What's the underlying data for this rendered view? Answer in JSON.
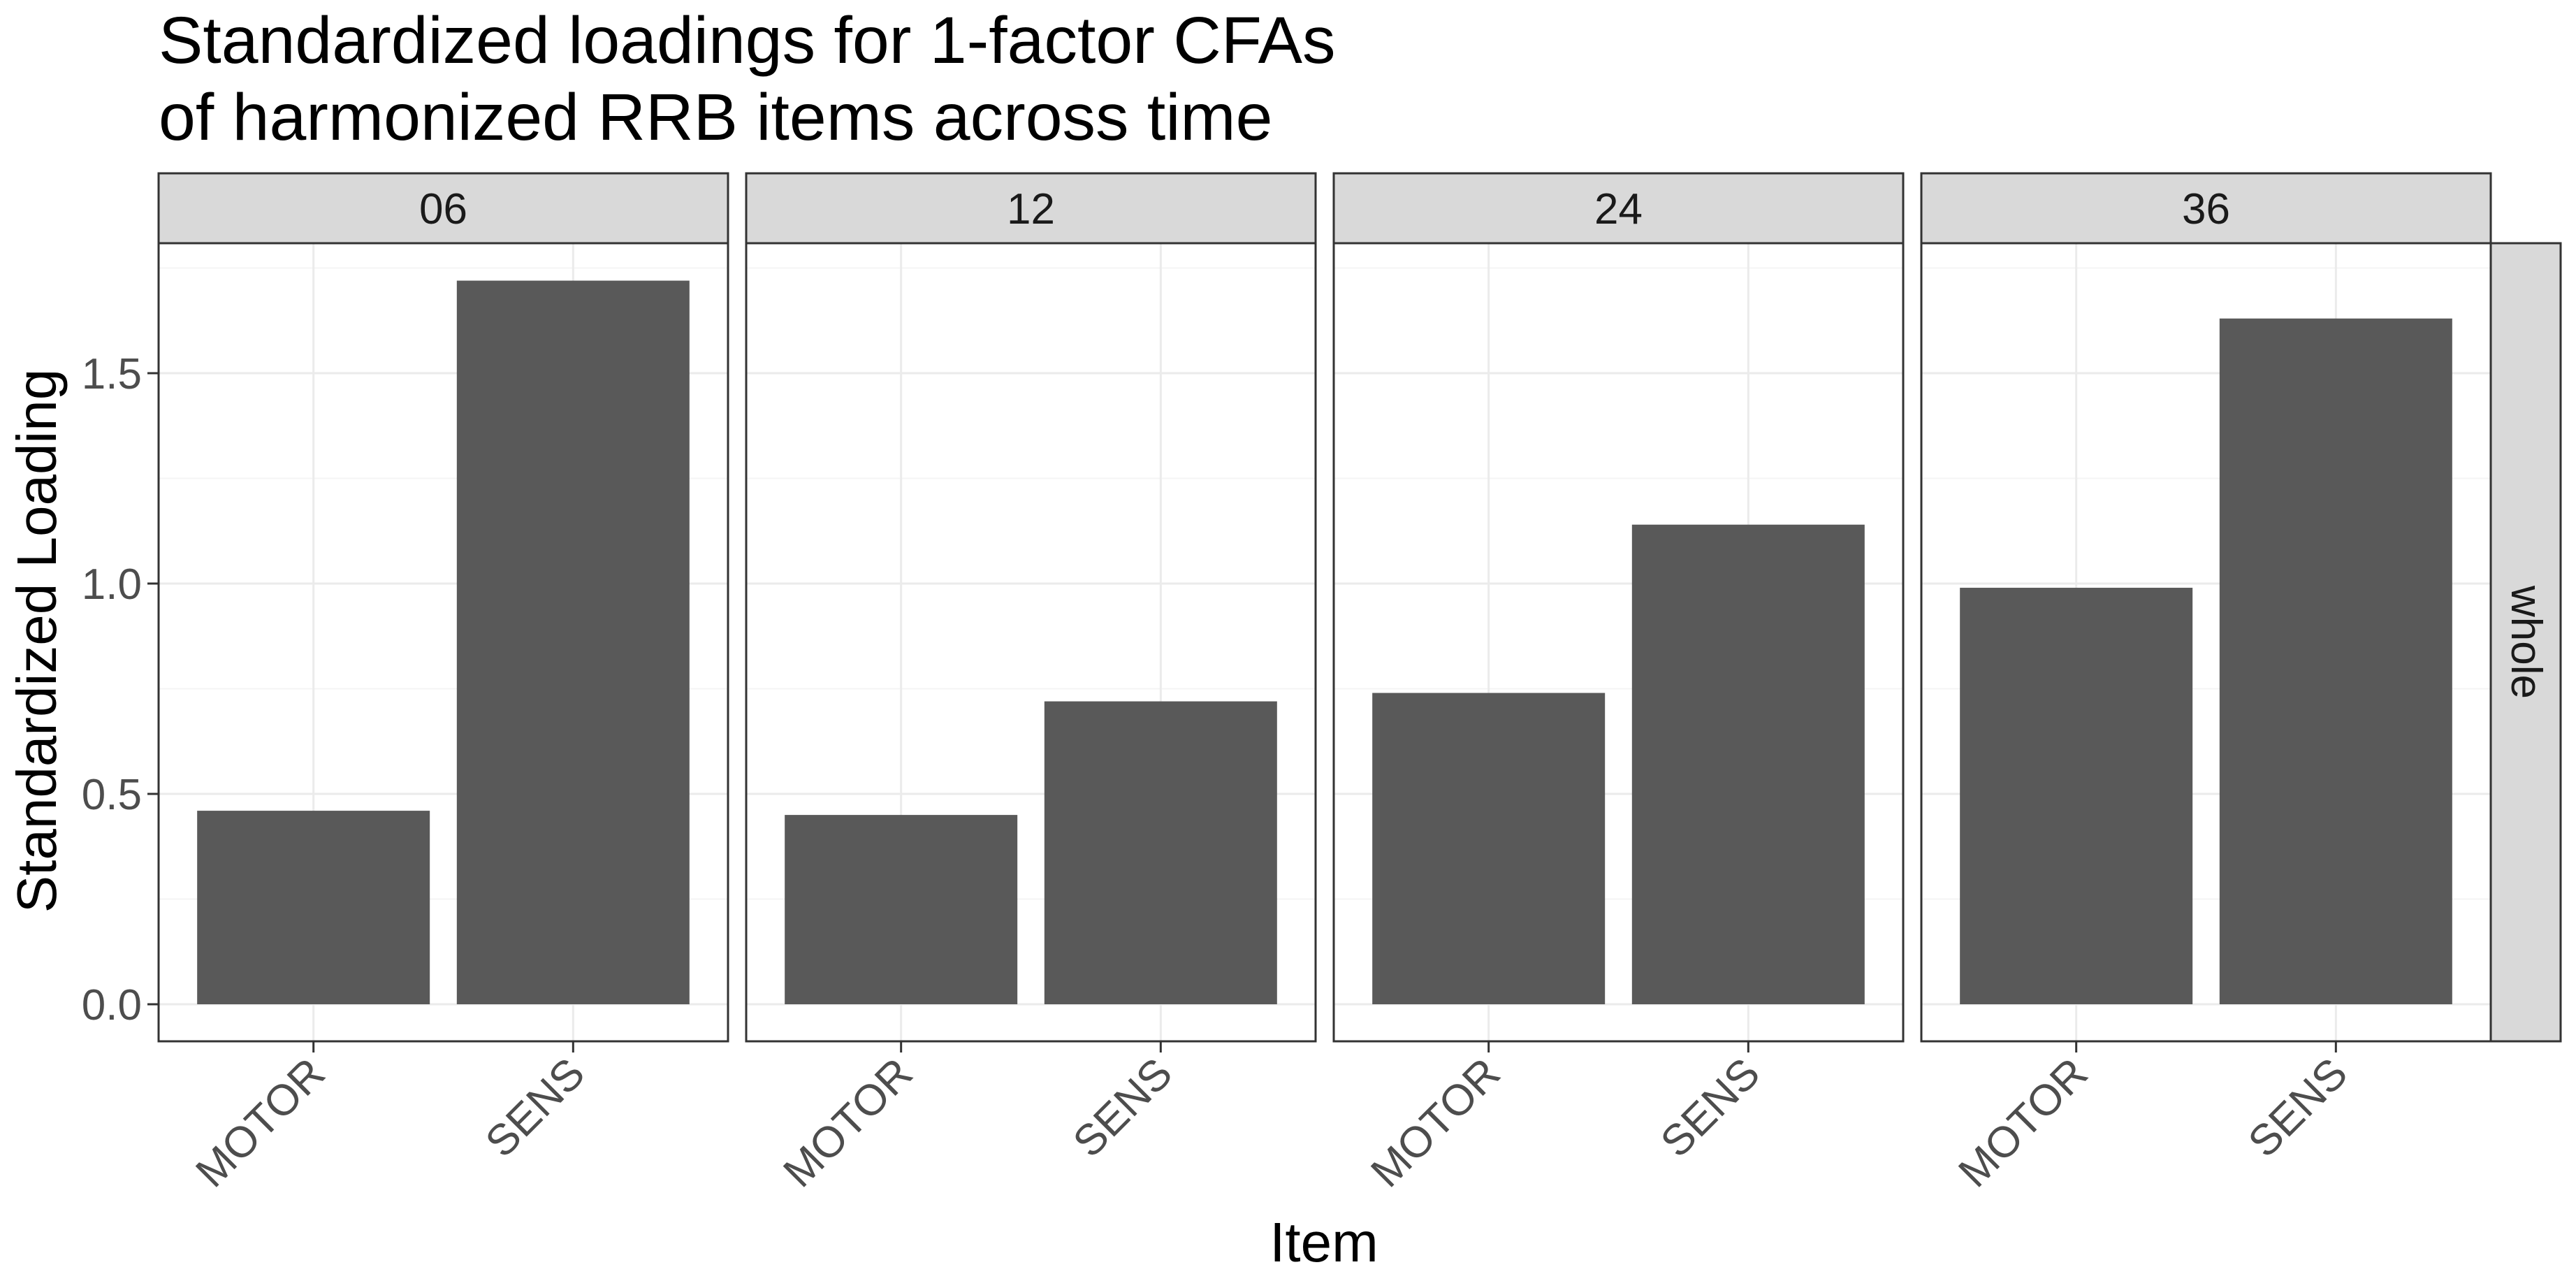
{
  "chart_data": {
    "type": "bar",
    "title": [
      "Standardized loadings for 1-factor CFAs",
      "of harmonized RRB items across time"
    ],
    "xlabel": "Item",
    "ylabel": "Standardized Loading",
    "ylim": [
      0,
      1.8
    ],
    "yticks": [
      "0.0",
      "0.5",
      "1.0",
      "1.5"
    ],
    "ytick_values": [
      0,
      0.5,
      1.0,
      1.5
    ],
    "categories": [
      "MOTOR",
      "SENS"
    ],
    "row_facet": "whole",
    "bar_color": "#595959",
    "grid": true,
    "facets": [
      {
        "label": "06",
        "values": [
          0.46,
          1.72
        ]
      },
      {
        "label": "12",
        "values": [
          0.45,
          0.72
        ]
      },
      {
        "label": "24",
        "values": [
          0.74,
          1.14
        ]
      },
      {
        "label": "36",
        "values": [
          0.99,
          1.63
        ]
      }
    ]
  }
}
